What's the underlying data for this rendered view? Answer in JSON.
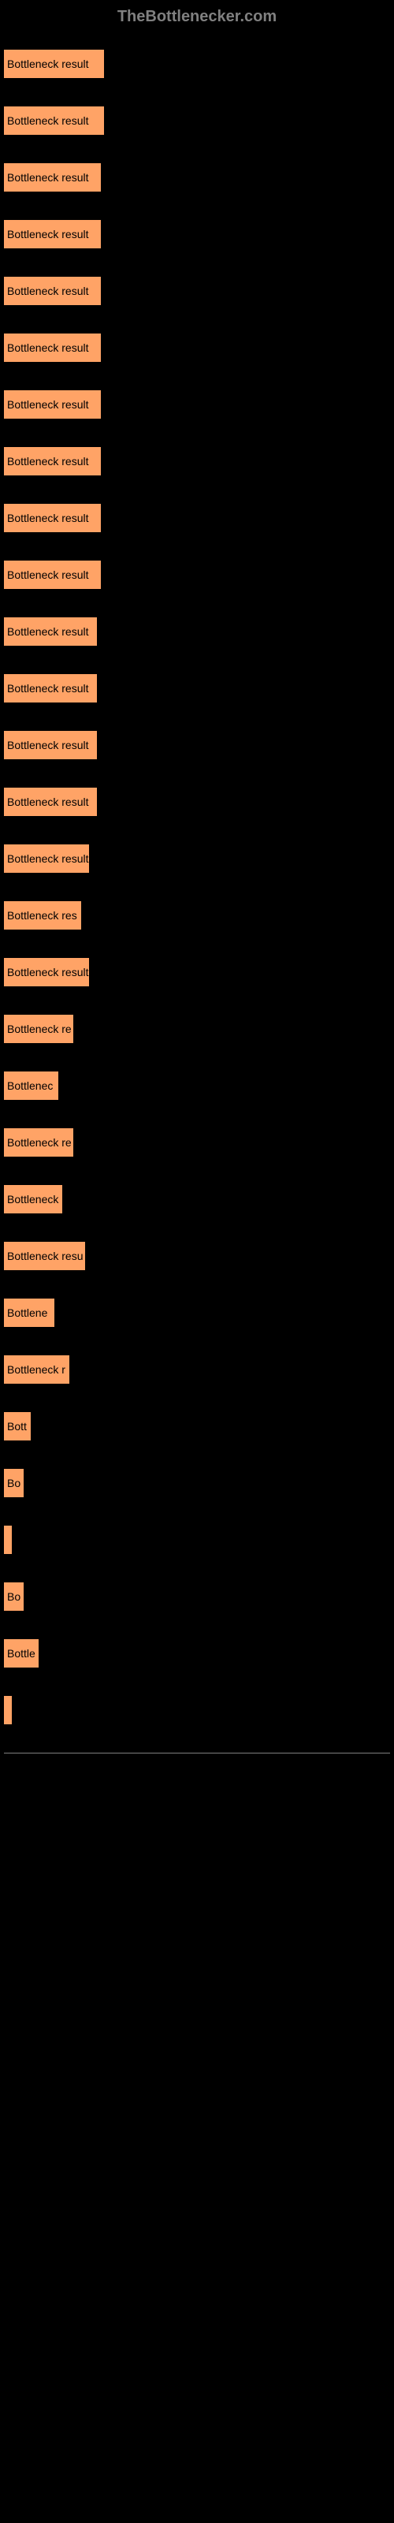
{
  "header": "TheBottlenecker.com",
  "chart": {
    "type": "bar",
    "bar_color": "#ffa366",
    "text_color": "#000000",
    "background_color": "#000000",
    "max_width_percent": 26,
    "bars": [
      {
        "label": "Bottleneck result",
        "width": 26
      },
      {
        "label": "Bottleneck result",
        "width": 26
      },
      {
        "label": "Bottleneck result",
        "width": 25
      },
      {
        "label": "Bottleneck result",
        "width": 25
      },
      {
        "label": "Bottleneck result",
        "width": 25
      },
      {
        "label": "Bottleneck result",
        "width": 25
      },
      {
        "label": "Bottleneck result",
        "width": 25
      },
      {
        "label": "Bottleneck result",
        "width": 25
      },
      {
        "label": "Bottleneck result",
        "width": 25
      },
      {
        "label": "Bottleneck result",
        "width": 25
      },
      {
        "label": "Bottleneck result",
        "width": 24
      },
      {
        "label": "Bottleneck result",
        "width": 24
      },
      {
        "label": "Bottleneck result",
        "width": 24
      },
      {
        "label": "Bottleneck result",
        "width": 24
      },
      {
        "label": "Bottleneck result",
        "width": 22
      },
      {
        "label": "Bottleneck res",
        "width": 20
      },
      {
        "label": "Bottleneck result",
        "width": 22
      },
      {
        "label": "Bottleneck re",
        "width": 18
      },
      {
        "label": "Bottlenec",
        "width": 14
      },
      {
        "label": "Bottleneck re",
        "width": 18
      },
      {
        "label": "Bottleneck",
        "width": 15
      },
      {
        "label": "Bottleneck resu",
        "width": 21
      },
      {
        "label": "Bottlene",
        "width": 13
      },
      {
        "label": "Bottleneck r",
        "width": 17
      },
      {
        "label": "Bott",
        "width": 7
      },
      {
        "label": "Bo",
        "width": 5
      },
      {
        "label": "",
        "width": 2
      },
      {
        "label": "Bo",
        "width": 5
      },
      {
        "label": "Bottle",
        "width": 9
      },
      {
        "label": "",
        "width": 2
      }
    ]
  }
}
